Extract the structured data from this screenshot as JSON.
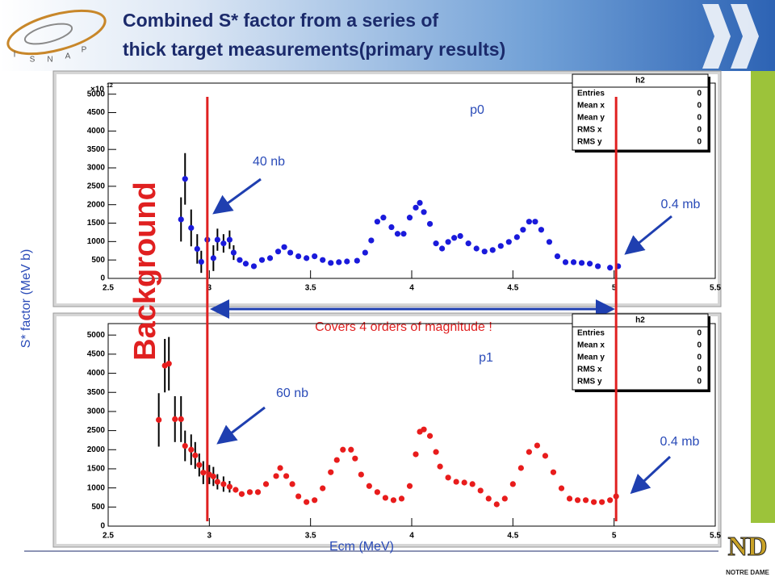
{
  "header": {
    "title_lines": [
      "Combined S* factor from a series of",
      "thick target measurements(primary results)"
    ],
    "logo_letters": [
      "I",
      "S",
      "N",
      "A",
      "P"
    ]
  },
  "footer": {
    "logo_text": "NOTRE DAME"
  },
  "slide": {
    "y_label": "S* factor (MeV b)",
    "x_label": "Ecm (MeV)",
    "background_label": "Background",
    "span_label": "Covers 4 orders of magnitude !",
    "range_lines": [
      2.99,
      5.01
    ]
  },
  "chart_data": [
    {
      "type": "scatter",
      "title": "p0",
      "color": "#1a1adb",
      "xlim": [
        2.5,
        5.5
      ],
      "ylim": [
        0,
        5300
      ],
      "xticks": [
        2.5,
        3,
        3.5,
        4,
        4.5,
        5,
        5.5
      ],
      "yticks": [
        0,
        500,
        1000,
        1500,
        2000,
        2500,
        3000,
        3500,
        4000,
        4500,
        5000
      ],
      "y_multiplier": {
        "base": "×10",
        "exponent": "12"
      },
      "x": [
        2.86,
        2.88,
        2.91,
        2.94,
        2.96,
        2.99,
        3.02,
        3.04,
        3.07,
        3.1,
        3.12,
        3.15,
        3.18,
        3.22,
        3.26,
        3.3,
        3.34,
        3.37,
        3.4,
        3.44,
        3.48,
        3.52,
        3.56,
        3.6,
        3.64,
        3.68,
        3.73,
        3.77,
        3.8,
        3.83,
        3.86,
        3.9,
        3.93,
        3.96,
        3.99,
        4.02,
        4.04,
        4.06,
        4.09,
        4.12,
        4.15,
        4.18,
        4.21,
        4.24,
        4.28,
        4.32,
        4.36,
        4.4,
        4.44,
        4.48,
        4.52,
        4.55,
        4.58,
        4.61,
        4.64,
        4.68,
        4.72,
        4.76,
        4.8,
        4.84,
        4.88,
        4.92,
        4.98,
        5.02
      ],
      "values": [
        1600,
        2700,
        1370,
        800,
        450,
        1050,
        550,
        1050,
        950,
        1050,
        700,
        500,
        400,
        330,
        500,
        550,
        730,
        850,
        700,
        600,
        550,
        600,
        500,
        420,
        440,
        460,
        480,
        700,
        1030,
        1540,
        1650,
        1390,
        1210,
        1210,
        1650,
        1920,
        2050,
        1800,
        1480,
        950,
        810,
        990,
        1100,
        1150,
        950,
        810,
        730,
        770,
        880,
        990,
        1120,
        1320,
        1540,
        1540,
        1320,
        990,
        600,
        440,
        440,
        420,
        400,
        330,
        290,
        330
      ],
      "errors": [
        600,
        700,
        500,
        400,
        300,
        400,
        350,
        300,
        250,
        250,
        200,
        null,
        null,
        null,
        null,
        null,
        null,
        null,
        null,
        null,
        null,
        null,
        null,
        null,
        null,
        null,
        null,
        null,
        null,
        null,
        null,
        null,
        null,
        null,
        null,
        null,
        null,
        null,
        null,
        null,
        null,
        null,
        null,
        null,
        null,
        null,
        null,
        null,
        null,
        null,
        null,
        null,
        null,
        null,
        null,
        null,
        null,
        null,
        null,
        null,
        null,
        null,
        null,
        null
      ],
      "annotations": [
        "40 nb",
        "0.4 mb"
      ],
      "stats": {
        "title": "h2",
        "rows": [
          {
            "label": "Entries",
            "value": 0
          },
          {
            "label": "Mean x",
            "value": 0
          },
          {
            "label": "Mean y",
            "value": 0
          },
          {
            "label": "RMS x",
            "value": 0
          },
          {
            "label": "RMS y",
            "value": 0
          }
        ]
      }
    },
    {
      "type": "scatter",
      "title": "p1",
      "color": "#e81c1c",
      "xlim": [
        2.5,
        5.5
      ],
      "ylim": [
        0,
        5300
      ],
      "xticks": [
        2.5,
        3,
        3.5,
        4,
        4.5,
        5,
        5.5
      ],
      "yticks": [
        0,
        500,
        1000,
        1500,
        2000,
        2500,
        3000,
        3500,
        4000,
        4500,
        5000
      ],
      "x": [
        2.75,
        2.78,
        2.8,
        2.83,
        2.86,
        2.88,
        2.91,
        2.93,
        2.95,
        2.97,
        3,
        3.02,
        3.04,
        3.07,
        3.1,
        3.13,
        3.16,
        3.2,
        3.24,
        3.28,
        3.33,
        3.35,
        3.38,
        3.41,
        3.44,
        3.48,
        3.52,
        3.56,
        3.6,
        3.63,
        3.66,
        3.7,
        3.72,
        3.75,
        3.79,
        3.83,
        3.87,
        3.91,
        3.95,
        3.99,
        4.02,
        4.04,
        4.06,
        4.09,
        4.12,
        4.14,
        4.18,
        4.22,
        4.26,
        4.3,
        4.34,
        4.38,
        4.42,
        4.46,
        4.5,
        4.54,
        4.58,
        4.62,
        4.66,
        4.7,
        4.74,
        4.78,
        4.82,
        4.86,
        4.9,
        4.94,
        4.98,
        5.01
      ],
      "values": [
        2780,
        4200,
        4250,
        2800,
        2800,
        2100,
        2000,
        1850,
        1600,
        1400,
        1350,
        1300,
        1160,
        1100,
        1030,
        950,
        840,
        890,
        890,
        1100,
        1310,
        1520,
        1310,
        1100,
        780,
        630,
        680,
        990,
        1410,
        1730,
        2000,
        2000,
        1770,
        1350,
        1050,
        890,
        740,
        680,
        720,
        1050,
        1880,
        2470,
        2530,
        2360,
        1940,
        1560,
        1270,
        1160,
        1140,
        1100,
        930,
        720,
        570,
        720,
        1100,
        1520,
        1940,
        2110,
        1840,
        1410,
        990,
        720,
        680,
        680,
        630,
        630,
        680,
        780
      ],
      "errors": [
        700,
        700,
        700,
        600,
        600,
        400,
        400,
        350,
        300,
        300,
        250,
        250,
        200,
        200,
        150,
        null,
        null,
        null,
        null,
        null,
        null,
        null,
        null,
        null,
        null,
        null,
        null,
        null,
        null,
        null,
        null,
        null,
        null,
        null,
        null,
        null,
        null,
        null,
        null,
        null,
        null,
        null,
        null,
        null,
        null,
        null,
        null,
        null,
        null,
        null,
        null,
        null,
        null,
        null,
        null,
        null,
        null,
        null,
        null,
        null,
        null,
        null,
        null,
        null,
        null,
        null,
        null,
        null
      ],
      "annotations": [
        "60 nb",
        "0.4 mb"
      ],
      "stats": {
        "title": "h2",
        "rows": [
          {
            "label": "Entries",
            "value": 0
          },
          {
            "label": "Mean x",
            "value": 0
          },
          {
            "label": "Mean y",
            "value": 0
          },
          {
            "label": "RMS x",
            "value": 0
          },
          {
            "label": "RMS y",
            "value": 0
          }
        ]
      }
    }
  ]
}
